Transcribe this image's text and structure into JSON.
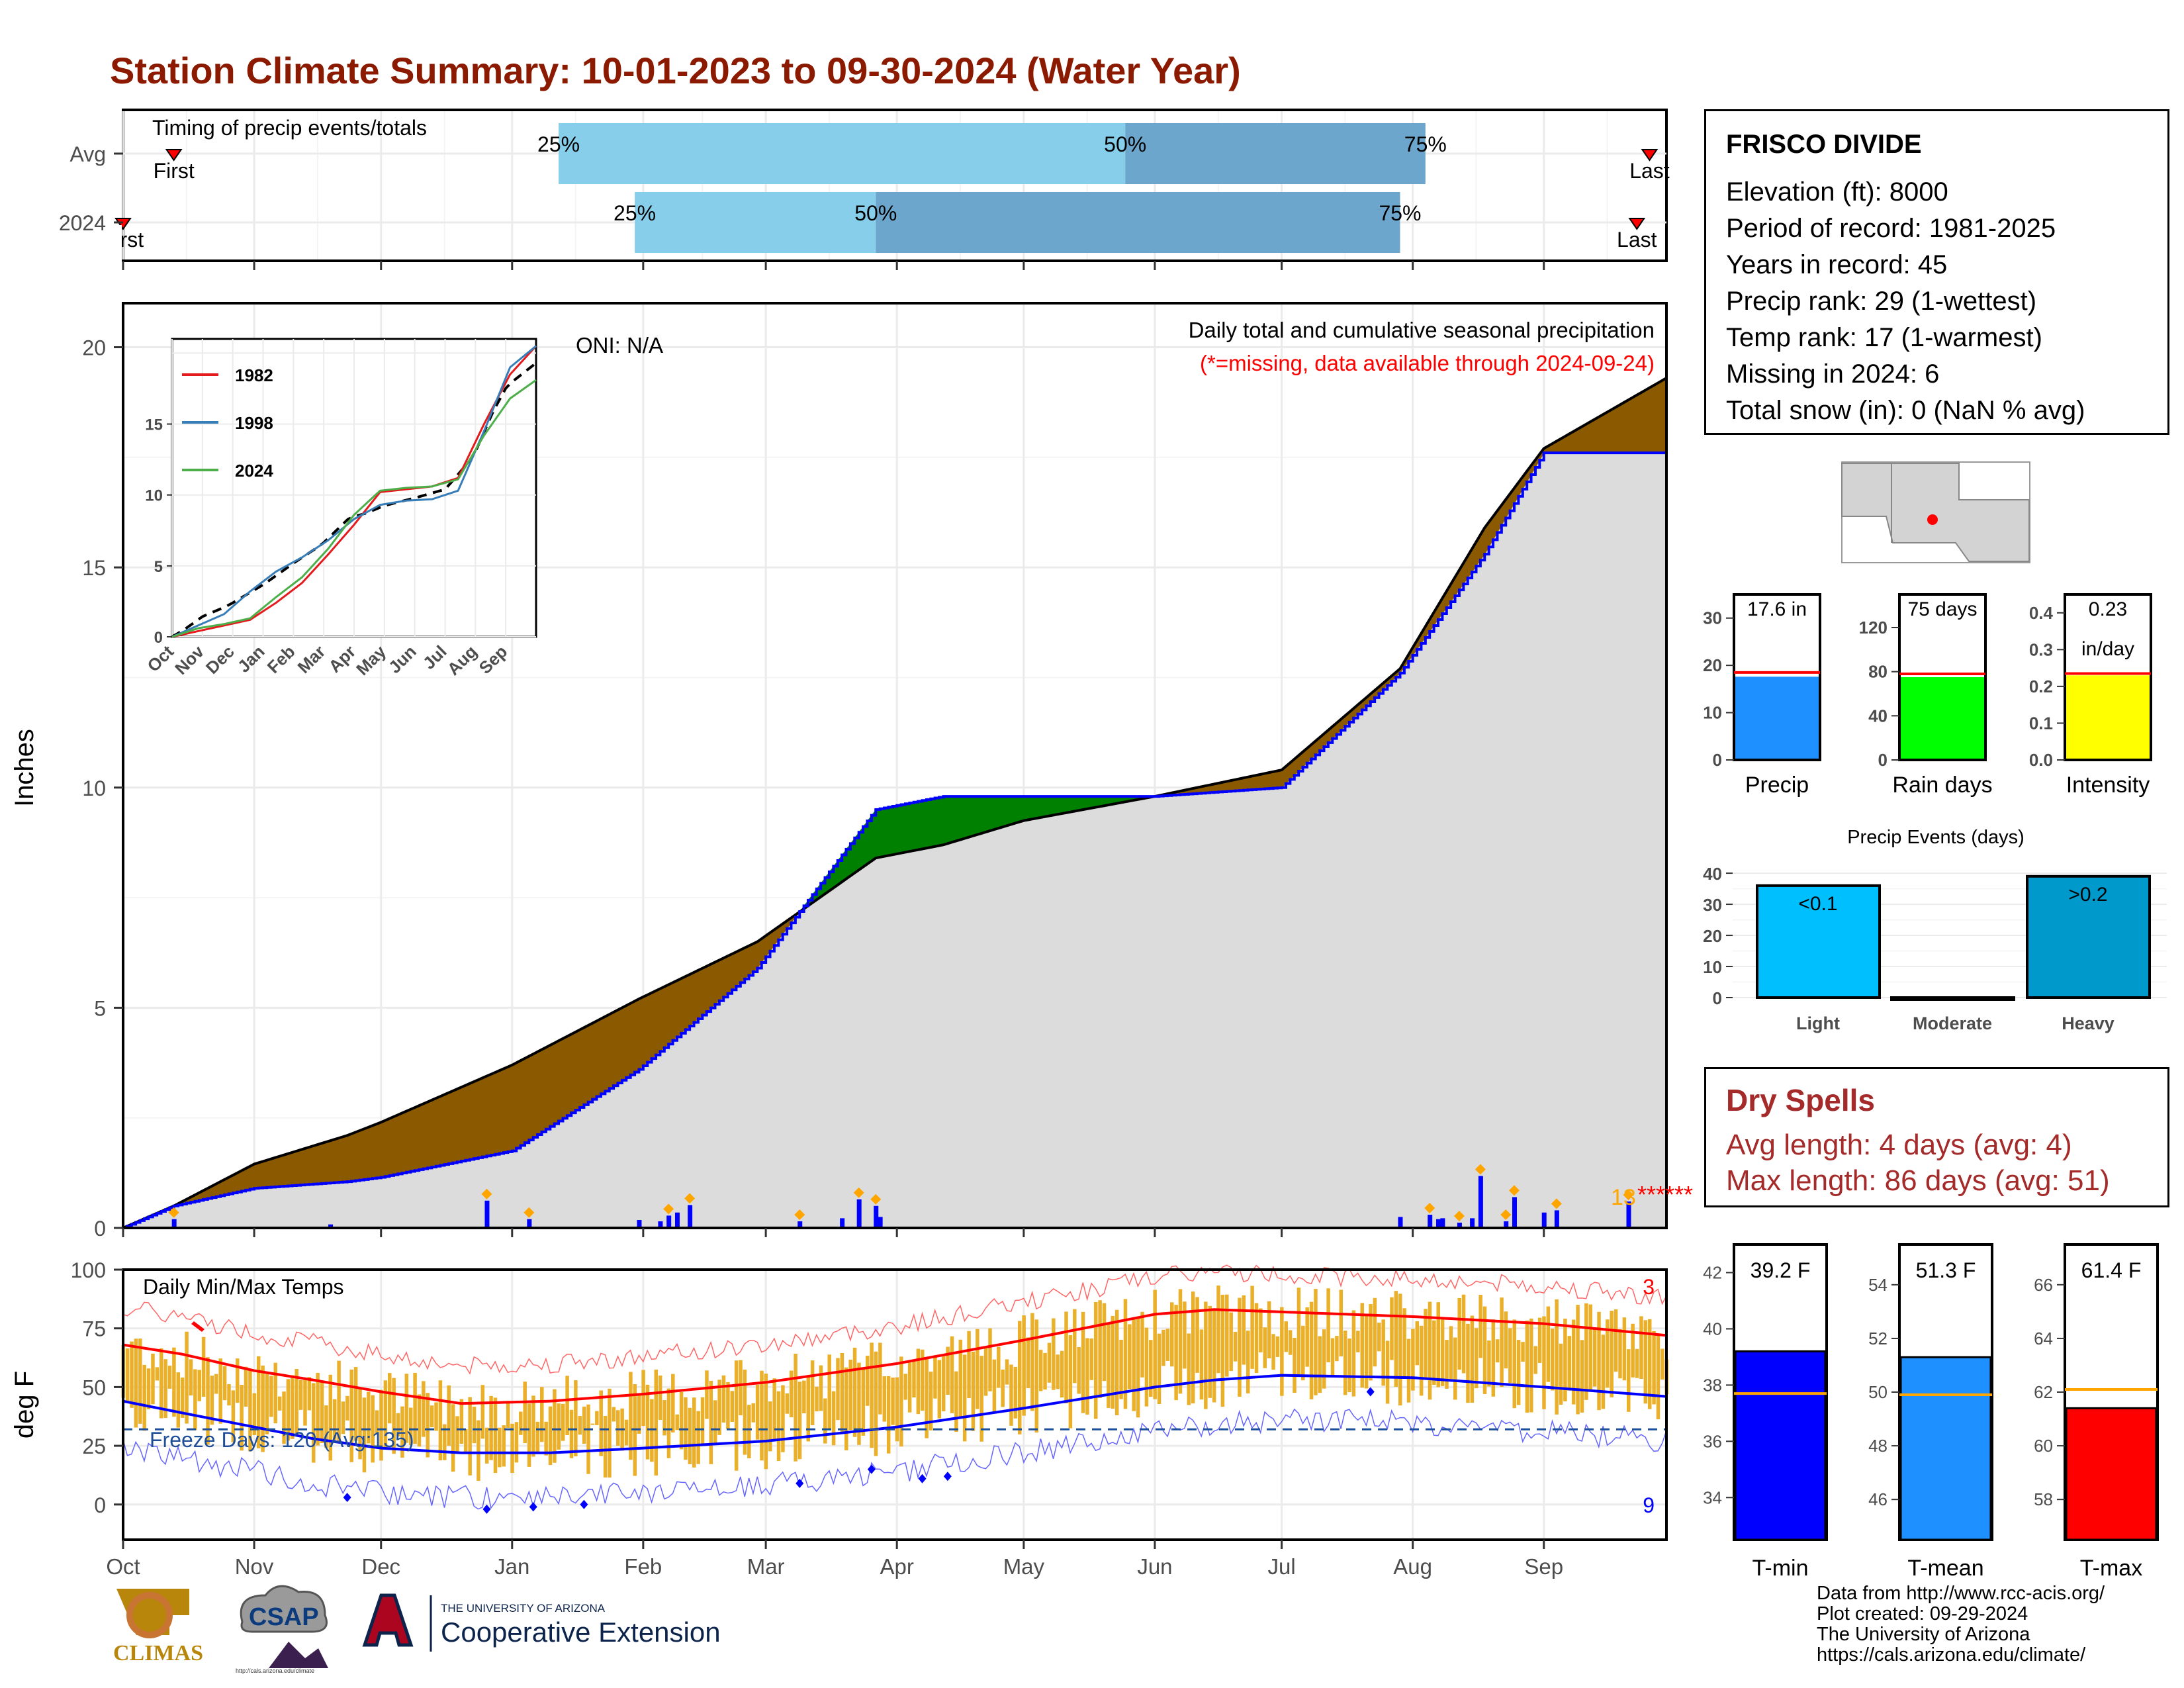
{
  "title": "Station Climate Summary: 10-01-2023 to 09-30-2024 (Water Year)",
  "colors": {
    "title": "#8B1A00",
    "deficit": "#8B5A00",
    "surplus": "#008000",
    "observed_line": "#0000FF",
    "fill_gray": "#DCDCDC",
    "timing_light": "#87CEEB",
    "timing_dark": "#6CA6CD",
    "temp_bar": "#EBB02A",
    "tmax_line": "#FF0000",
    "tmin_line": "#0000FF",
    "missing": "#FF0000",
    "precip_bar": "#1E90FF",
    "rain_bar": "#00FF00",
    "intensity_bar": "#FFFF00",
    "light_bar": "#00BFFF",
    "heavy_bar": "#0099CC"
  },
  "timing": {
    "caption": "Timing of precip events/totals",
    "rows": [
      {
        "label": "Avg",
        "first": "2023-10-13",
        "q25": "2024-01-12",
        "q50": "2024-05-25",
        "q75": "2024-08-04",
        "last": "2024-09-26"
      },
      {
        "label": "2024",
        "first": "2023-10-01",
        "q25": "2024-01-30",
        "q50": "2024-03-27",
        "q75": "2024-07-29",
        "last": "2024-09-23"
      }
    ],
    "marker_first": "First",
    "marker_last": "Last",
    "pct_labels": [
      "25%",
      "50%",
      "75%"
    ]
  },
  "precip_chart": {
    "ylabel": "Inches",
    "ytick_labels": [
      "0",
      "5",
      "10",
      "15",
      "20"
    ],
    "oni": "ONI: N/A",
    "legend_line1": "Daily total and cumulative seasonal precipitation",
    "legend_line2": "(*=missing, data available through 2024-09-24)",
    "missing_count": "13",
    "missing_marks": "******"
  },
  "month_labels": [
    "Oct",
    "Nov",
    "Dec",
    "Jan",
    "Feb",
    "Mar",
    "Apr",
    "May",
    "Jun",
    "Jul",
    "Aug",
    "Sep"
  ],
  "chart_data": [
    {
      "type": "area",
      "name": "cumulative precipitation",
      "x": [
        "2023-10-01",
        "2023-10-13",
        "2023-11-01",
        "2023-11-23",
        "2023-12-01",
        "2024-01-01",
        "2024-01-31",
        "2024-02-28",
        "2024-03-27",
        "2024-04-12",
        "2024-05-01",
        "2024-06-01",
        "2024-07-01",
        "2024-07-29",
        "2024-08-18",
        "2024-09-01",
        "2024-09-30"
      ],
      "series": [
        {
          "values_avg": [
            0.0,
            0.5,
            1.45,
            2.1,
            2.4,
            3.7,
            5.2,
            6.5,
            8.4,
            8.7,
            9.25,
            9.8,
            10.4,
            12.7,
            15.9,
            17.7,
            19.3
          ]
        },
        {
          "values_2024": [
            0.0,
            0.5,
            0.9,
            1.05,
            1.15,
            1.75,
            3.6,
            5.9,
            9.5,
            9.8,
            9.8,
            9.8,
            10.0,
            12.6,
            15.3,
            17.6,
            17.6
          ]
        }
      ],
      "ylim": [
        0,
        21
      ]
    },
    {
      "type": "bar",
      "name": "daily precipitation",
      "x": [
        "2023-10-13",
        "2023-11-19",
        "2023-12-26",
        "2024-01-05",
        "2024-01-31",
        "2024-02-05",
        "2024-02-07",
        "2024-02-09",
        "2024-02-12",
        "2024-03-09",
        "2024-03-19",
        "2024-03-23",
        "2024-03-27",
        "2024-03-28",
        "2024-07-29",
        "2024-08-05",
        "2024-08-07",
        "2024-08-08",
        "2024-08-12",
        "2024-08-15",
        "2024-08-17",
        "2024-08-23",
        "2024-08-25",
        "2024-09-01",
        "2024-09-04",
        "2024-09-21"
      ],
      "values": [
        0.2,
        0.08,
        0.62,
        0.2,
        0.18,
        0.15,
        0.28,
        0.35,
        0.52,
        0.15,
        0.22,
        0.65,
        0.5,
        0.25,
        0.25,
        0.3,
        0.2,
        0.22,
        0.12,
        0.22,
        1.18,
        0.15,
        0.7,
        0.35,
        0.4,
        0.6
      ]
    },
    {
      "type": "line",
      "name": "temperatures",
      "ylabel": "deg F",
      "yticks": [
        "0",
        "25",
        "50",
        "75",
        "100"
      ],
      "ylim": [
        -15,
        100
      ],
      "x": [
        "2023-10-01",
        "2023-10-15",
        "2023-11-01",
        "2023-11-15",
        "2023-12-01",
        "2023-12-20",
        "2024-01-10",
        "2024-02-01",
        "2024-03-01",
        "2024-04-01",
        "2024-05-01",
        "2024-06-01",
        "2024-06-15",
        "2024-07-01",
        "2024-08-01",
        "2024-09-01",
        "2024-09-30"
      ],
      "avg_tmax": [
        68,
        64,
        57,
        53,
        48,
        43,
        44,
        47,
        52,
        60,
        70,
        81,
        83,
        82,
        80,
        77,
        72
      ],
      "avg_tmin": [
        44,
        39,
        33,
        28,
        24,
        22,
        22,
        24,
        27,
        33,
        41,
        50,
        53,
        55,
        54,
        50,
        46
      ],
      "record_high_count": "3",
      "record_low_count": "9",
      "panel_label": "Daily Min/Max Temps",
      "freeze_label": "Freeze Days: 120 (Avg:135)"
    }
  ],
  "station": {
    "name": "FRISCO DIVIDE",
    "rows": [
      "Elevation (ft): 8000",
      "Period of record: 1981-2025",
      "Years in record: 45",
      "Precip rank: 29 (1-wettest)",
      "Temp rank: 17 (1-warmest)",
      "Missing in 2024: 6",
      "Total snow (in): 0 (NaN % avg)"
    ]
  },
  "inset": {
    "legend": [
      "1982",
      "1998",
      "2024"
    ],
    "yticks": [
      "0",
      "5",
      "10",
      "15"
    ],
    "months": [
      "Oct",
      "Nov",
      "Dec",
      "Jan",
      "Feb",
      "Mar",
      "Apr",
      "May",
      "Jun",
      "Jul",
      "Aug",
      "Sep"
    ]
  },
  "mini_bars": [
    {
      "label": "Precip",
      "value_text": "17.6 in",
      "value": 17.6,
      "avg": 18.5,
      "yticks": [
        "0",
        "10",
        "20",
        "30"
      ],
      "ymax": 35,
      "color": "#1E90FF"
    },
    {
      "label": "Rain days",
      "value_text": "75 days",
      "value": 75,
      "avg": 78,
      "yticks": [
        "0",
        "40",
        "80",
        "120"
      ],
      "ymax": 150,
      "color": "#00FF00"
    },
    {
      "label": "Intensity",
      "value_text": "0.23",
      "value_text2": "in/day",
      "value": 0.23,
      "avg": 0.235,
      "yticks": [
        "0.0",
        "0.1",
        "0.2",
        "0.3",
        "0.4"
      ],
      "ymax": 0.45,
      "color": "#FFFF00"
    }
  ],
  "precip_events": {
    "title": "Precip Events (days)",
    "yticks": [
      "0",
      "10",
      "20",
      "30",
      "40"
    ],
    "categories": [
      "Light",
      "Moderate",
      "Heavy"
    ],
    "values": [
      36,
      0,
      39
    ],
    "bar_labels": [
      "<0.1",
      "",
      ">0.2"
    ]
  },
  "dry_spells": {
    "title": "Dry Spells",
    "avg": "Avg length: 4 days (avg: 4)",
    "max": "Max length: 86 days (avg: 51)"
  },
  "temp_bars": [
    {
      "label": "T-min",
      "value_text": "39.2 F",
      "value": 39.2,
      "avg": 37.7,
      "yticks": [
        "34",
        "36",
        "38",
        "40",
        "42"
      ],
      "ymin": 32.5,
      "ymax": 43,
      "color": "#0000FF"
    },
    {
      "label": "T-mean",
      "value_text": "51.3 F",
      "value": 51.3,
      "avg": 49.9,
      "yticks": [
        "46",
        "48",
        "50",
        "52",
        "54"
      ],
      "ymin": 44.5,
      "ymax": 55.5,
      "color": "#1E90FF"
    },
    {
      "label": "T-max",
      "value_text": "61.4 F",
      "value": 61.4,
      "avg": 62.1,
      "yticks": [
        "58",
        "60",
        "62",
        "64",
        "66"
      ],
      "ymin": 56.5,
      "ymax": 67.5,
      "color": "#FF0000"
    }
  ],
  "credits": [
    "Data from http://www.rcc-acis.org/",
    "Plot created: 09-29-2024",
    "The University of Arizona",
    "https://cals.arizona.edu/climate/"
  ],
  "logos": {
    "climas": "CLIMAS",
    "csap": "CSAP",
    "ua_small": "THE UNIVERSITY OF ARIZONA",
    "ua_big": "Cooperative Extension",
    "csap_url": "http://cals.arizona.edu/climate"
  }
}
